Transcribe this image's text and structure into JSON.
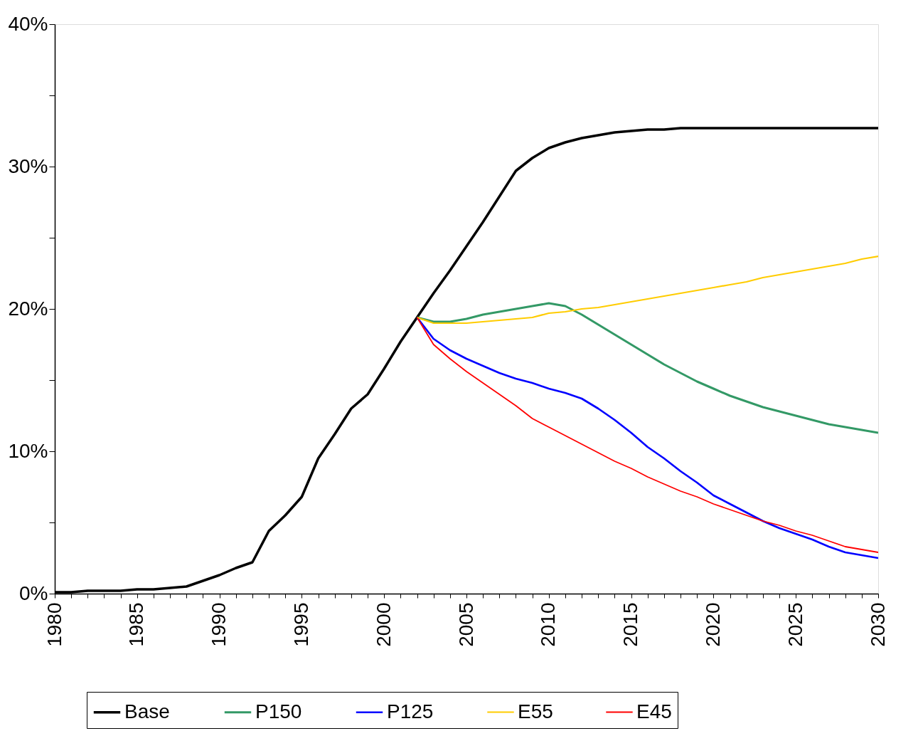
{
  "chart_data": {
    "type": "line",
    "xlim": [
      1980,
      2030
    ],
    "xticks": [
      1980,
      {
        "value": 1981,
        "label": null
      },
      {
        "value": 1982,
        "label": null
      },
      {
        "value": 1983,
        "label": null
      },
      {
        "value": 1984,
        "label": null
      },
      1985,
      {
        "value": 1986,
        "label": null
      },
      {
        "value": 1987,
        "label": null
      },
      {
        "value": 1988,
        "label": null
      },
      {
        "value": 1989,
        "label": null
      },
      1990,
      {
        "value": 1991,
        "label": null
      },
      {
        "value": 1992,
        "label": null
      },
      {
        "value": 1993,
        "label": null
      },
      {
        "value": 1994,
        "label": null
      },
      1995,
      {
        "value": 1996,
        "label": null
      },
      {
        "value": 1997,
        "label": null
      },
      {
        "value": 1998,
        "label": null
      },
      {
        "value": 1999,
        "label": null
      },
      2000,
      {
        "value": 2001,
        "label": null
      },
      {
        "value": 2002,
        "label": null
      },
      {
        "value": 2003,
        "label": null
      },
      {
        "value": 2004,
        "label": null
      },
      2005,
      {
        "value": 2006,
        "label": null
      },
      {
        "value": 2007,
        "label": null
      },
      {
        "value": 2008,
        "label": null
      },
      {
        "value": 2009,
        "label": null
      },
      2010,
      {
        "value": 2011,
        "label": null
      },
      {
        "value": 2012,
        "label": null
      },
      {
        "value": 2013,
        "label": null
      },
      {
        "value": 2014,
        "label": null
      },
      2015,
      {
        "value": 2016,
        "label": null
      },
      {
        "value": 2017,
        "label": null
      },
      {
        "value": 2018,
        "label": null
      },
      {
        "value": 2019,
        "label": null
      },
      2020,
      {
        "value": 2021,
        "label": null
      },
      {
        "value": 2022,
        "label": null
      },
      {
        "value": 2023,
        "label": null
      },
      {
        "value": 2024,
        "label": null
      },
      2025,
      {
        "value": 2026,
        "label": null
      },
      {
        "value": 2027,
        "label": null
      },
      {
        "value": 2028,
        "label": null
      },
      {
        "value": 2029,
        "label": null
      },
      2030
    ],
    "ylim": [
      0,
      40
    ],
    "yticks": [
      {
        "value": 0,
        "label": "0%"
      },
      {
        "value": 5,
        "label": null
      },
      {
        "value": 10,
        "label": "10%"
      },
      {
        "value": 15,
        "label": null
      },
      {
        "value": 20,
        "label": "20%"
      },
      {
        "value": 25,
        "label": null
      },
      {
        "value": 30,
        "label": "30%"
      },
      {
        "value": 35,
        "label": null
      },
      {
        "value": 40,
        "label": "40%"
      }
    ],
    "grid": false,
    "legend": "bottom",
    "marker": "none",
    "line_style": "solid",
    "series": [
      {
        "name": "Base",
        "color": "#000000",
        "x": [
          1980,
          1981,
          1982,
          1983,
          1984,
          1985,
          1986,
          1987,
          1988,
          1989,
          1990,
          1991,
          1992,
          1993,
          1994,
          1995,
          1996,
          1997,
          1998,
          1999,
          2000,
          2001,
          2002,
          2003,
          2004,
          2005,
          2006,
          2007,
          2008,
          2009,
          2010,
          2011,
          2012,
          2013,
          2014,
          2015,
          2016,
          2017,
          2018,
          2019,
          2020,
          2021,
          2022,
          2023,
          2024,
          2025,
          2026,
          2027,
          2028,
          2029,
          2030
        ],
        "values": [
          0.1,
          0.1,
          0.2,
          0.2,
          0.2,
          0.3,
          0.3,
          0.4,
          0.5,
          0.9,
          1.3,
          1.8,
          2.2,
          4.4,
          5.5,
          6.8,
          9.5,
          11.2,
          13.0,
          14.0,
          15.8,
          17.7,
          19.4,
          21.1,
          22.7,
          24.4,
          26.1,
          27.9,
          29.7,
          30.6,
          31.3,
          31.7,
          32.0,
          32.2,
          32.4,
          32.5,
          32.6,
          32.6,
          32.7,
          32.7,
          32.7,
          32.7,
          32.7,
          32.7,
          32.7,
          32.7,
          32.7,
          32.7,
          32.7,
          32.7,
          32.7
        ]
      },
      {
        "name": "P150",
        "color": "#339966",
        "x": [
          2002,
          2003,
          2004,
          2005,
          2006,
          2007,
          2008,
          2009,
          2010,
          2011,
          2012,
          2013,
          2014,
          2015,
          2016,
          2017,
          2018,
          2019,
          2020,
          2021,
          2022,
          2023,
          2024,
          2025,
          2026,
          2027,
          2028,
          2029,
          2030
        ],
        "values": [
          19.4,
          19.1,
          19.1,
          19.3,
          19.6,
          19.8,
          20.0,
          20.2,
          20.4,
          20.2,
          19.6,
          18.9,
          18.2,
          17.5,
          16.8,
          16.1,
          15.5,
          14.9,
          14.4,
          13.9,
          13.5,
          13.1,
          12.8,
          12.5,
          12.2,
          11.9,
          11.7,
          11.5,
          11.3
        ]
      },
      {
        "name": "P125",
        "color": "#0000ff",
        "x": [
          2002,
          2003,
          2004,
          2005,
          2006,
          2007,
          2008,
          2009,
          2010,
          2011,
          2012,
          2013,
          2014,
          2015,
          2016,
          2017,
          2018,
          2019,
          2020,
          2021,
          2022,
          2023,
          2024,
          2025,
          2026,
          2027,
          2028,
          2029,
          2030
        ],
        "values": [
          19.4,
          17.9,
          17.1,
          16.5,
          16.0,
          15.5,
          15.1,
          14.8,
          14.4,
          14.1,
          13.7,
          13.0,
          12.2,
          11.3,
          10.3,
          9.5,
          8.6,
          7.8,
          6.9,
          6.3,
          5.7,
          5.1,
          4.6,
          4.2,
          3.8,
          3.3,
          2.9,
          2.7,
          2.5
        ]
      },
      {
        "name": "E55",
        "color": "#ffcc00",
        "x": [
          2002,
          2003,
          2004,
          2005,
          2006,
          2007,
          2008,
          2009,
          2010,
          2011,
          2012,
          2013,
          2014,
          2015,
          2016,
          2017,
          2018,
          2019,
          2020,
          2021,
          2022,
          2023,
          2024,
          2025,
          2026,
          2027,
          2028,
          2029,
          2030
        ],
        "values": [
          19.4,
          19.0,
          19.0,
          19.0,
          19.1,
          19.2,
          19.3,
          19.4,
          19.7,
          19.8,
          20.0,
          20.1,
          20.3,
          20.5,
          20.7,
          20.9,
          21.1,
          21.3,
          21.5,
          21.7,
          21.9,
          22.2,
          22.4,
          22.6,
          22.8,
          23.0,
          23.2,
          23.5,
          23.7
        ]
      },
      {
        "name": "E45",
        "color": "#ff0000",
        "x": [
          2002,
          2003,
          2004,
          2005,
          2006,
          2007,
          2008,
          2009,
          2010,
          2011,
          2012,
          2013,
          2014,
          2015,
          2016,
          2017,
          2018,
          2019,
          2020,
          2021,
          2022,
          2023,
          2024,
          2025,
          2026,
          2027,
          2028,
          2029,
          2030
        ],
        "values": [
          19.4,
          17.5,
          16.5,
          15.6,
          14.8,
          14.0,
          13.2,
          12.3,
          11.7,
          11.1,
          10.5,
          9.9,
          9.3,
          8.8,
          8.2,
          7.7,
          7.2,
          6.8,
          6.3,
          5.9,
          5.5,
          5.1,
          4.8,
          4.4,
          4.1,
          3.7,
          3.3,
          3.1,
          2.9
        ]
      }
    ]
  }
}
